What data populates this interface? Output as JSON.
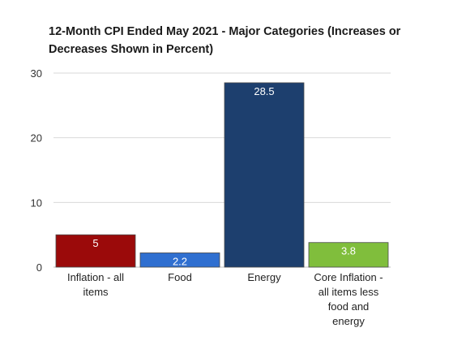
{
  "chart_data": {
    "type": "bar",
    "title": "12-Month CPI Ended May 2021 - Major Categories (Increases or Decreases Shown in Percent)",
    "categories": [
      "Inflation - all items",
      "Food",
      "Energy",
      "Core Inflation - all items less food and energy"
    ],
    "category_label_lines": [
      [
        "Inflation - all",
        "items"
      ],
      [
        "Food"
      ],
      [
        "Energy"
      ],
      [
        "Core Inflation -",
        "all items less",
        "food and",
        "energy"
      ]
    ],
    "values": [
      5,
      2.2,
      28.5,
      3.8
    ],
    "data_labels": [
      "5",
      "2.2",
      "28.5",
      "3.8"
    ],
    "colors": [
      "#9b0a0a",
      "#2f6fd0",
      "#1d3f6e",
      "#80be3c"
    ],
    "yticks": [
      0,
      10,
      20,
      30
    ],
    "ylim": [
      0,
      30
    ],
    "grid": true,
    "legend": false
  }
}
